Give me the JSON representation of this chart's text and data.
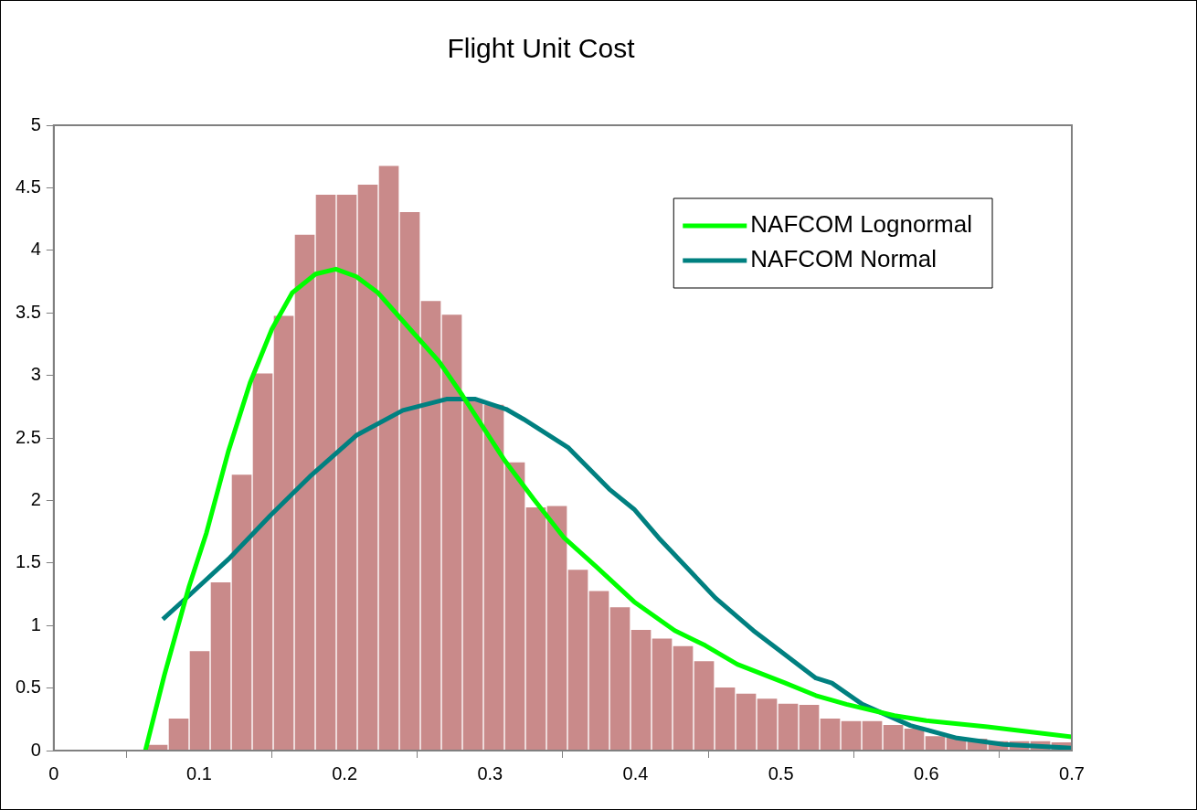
{
  "chart_data": {
    "type": "histogram",
    "title": "Flight Unit Cost",
    "bins": [
      0.0642,
      0.0787,
      0.0931,
      0.1076,
      0.122,
      0.1365,
      0.1509,
      0.1654,
      0.1798,
      0.1943,
      0.2087,
      0.2232,
      0.2376,
      0.2521,
      0.2665,
      0.281,
      0.2954,
      0.3099,
      0.3243,
      0.3388,
      0.3532,
      0.3677,
      0.3821,
      0.3966,
      0.411,
      0.4255,
      0.4399,
      0.4544,
      0.4688,
      0.4833,
      0.4977,
      0.5122,
      0.5266,
      0.5411,
      0.5555,
      0.57,
      0.5844,
      0.5989,
      0.6133,
      0.6278,
      0.6422,
      0.6567,
      0.6711,
      0.6856,
      0.7
    ],
    "values": [
      0.05,
      0.26,
      0.8,
      1.35,
      2.21,
      3.02,
      3.48,
      4.13,
      4.45,
      4.45,
      4.53,
      4.68,
      4.31,
      3.6,
      3.49,
      2.8,
      2.77,
      2.31,
      1.95,
      1.96,
      1.45,
      1.28,
      1.15,
      0.97,
      0.9,
      0.84,
      0.72,
      0.51,
      0.46,
      0.42,
      0.38,
      0.37,
      0.26,
      0.24,
      0.24,
      0.21,
      0.18,
      0.12,
      0.11,
      0.1,
      0.08,
      0.08,
      0.08,
      0.07
    ],
    "color": "#c98a8a",
    "series": [
      {
        "type": "line",
        "name": "NAFCOM Lognormal",
        "color": "#00ff00",
        "x": [
          0.063,
          0.076,
          0.093,
          0.105,
          0.12,
          0.135,
          0.15,
          0.164,
          0.18,
          0.194,
          0.208,
          0.223,
          0.245,
          0.265,
          0.281,
          0.31,
          0.33,
          0.351,
          0.373,
          0.399,
          0.427,
          0.448,
          0.47,
          0.503,
          0.524,
          0.545,
          0.578,
          0.6,
          0.642,
          0.7
        ],
        "values": [
          0,
          0.6,
          1.31,
          1.74,
          2.39,
          2.94,
          3.37,
          3.66,
          3.81,
          3.85,
          3.79,
          3.66,
          3.37,
          3.11,
          2.84,
          2.32,
          2.01,
          1.7,
          1.47,
          1.19,
          0.96,
          0.84,
          0.69,
          0.54,
          0.44,
          0.37,
          0.28,
          0.24,
          0.19,
          0.11
        ]
      },
      {
        "type": "line",
        "name": "NAFCOM Normal",
        "color": "#008080",
        "x": [
          0.075,
          0.094,
          0.121,
          0.149,
          0.176,
          0.208,
          0.24,
          0.27,
          0.29,
          0.311,
          0.323,
          0.354,
          0.382,
          0.399,
          0.416,
          0.455,
          0.481,
          0.498,
          0.524,
          0.535,
          0.556,
          0.589,
          0.621,
          0.653,
          0.7
        ],
        "values": [
          1.05,
          1.25,
          1.54,
          1.88,
          2.19,
          2.52,
          2.72,
          2.81,
          2.81,
          2.73,
          2.65,
          2.42,
          2.09,
          1.93,
          1.7,
          1.22,
          0.96,
          0.81,
          0.58,
          0.54,
          0.37,
          0.2,
          0.1,
          0.05,
          0.02
        ]
      }
    ],
    "xlim": [
      0,
      0.7
    ],
    "xticks": [
      0,
      0.1,
      0.2,
      0.3,
      0.4,
      0.5,
      0.6,
      0.7
    ],
    "ylim": [
      0,
      5
    ],
    "yticks": [
      0,
      0.5,
      1,
      1.5,
      2,
      2.5,
      3,
      3.5,
      4,
      4.5,
      5
    ],
    "grid": false,
    "legend": "top right"
  }
}
